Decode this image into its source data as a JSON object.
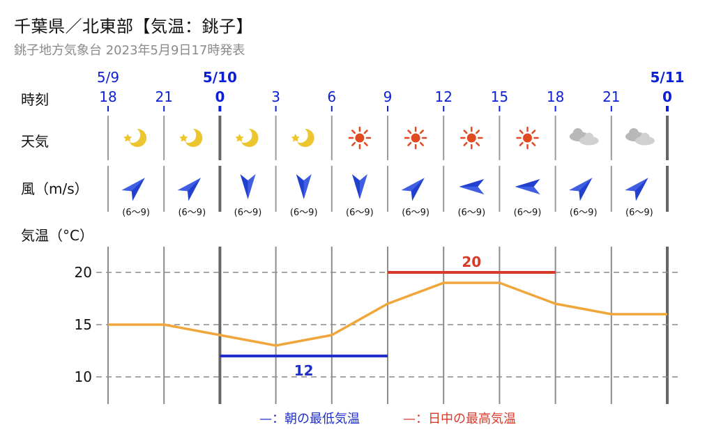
{
  "header": {
    "title": "千葉県／北東部【気温：銚子】",
    "subtitle": "銚子地方気象台 2023年5月9日17時発表"
  },
  "row_labels": {
    "time": "時刻",
    "weather": "天気",
    "wind": "風（m/s）",
    "temperature": "気温（°C）"
  },
  "colors": {
    "date_blue": "#0a1fd6",
    "temperature_line": "#f0a63a",
    "min_temp": "#1f2fc8",
    "max_temp": "#d83a2a",
    "wind_arrow": "#2140d0",
    "sun": "#e04a20",
    "moon": "#ecc52f",
    "cloud": "#c9c9c9"
  },
  "times": [
    {
      "hour": "18",
      "date": "5/9",
      "day_start": false,
      "weather": "moon-icon",
      "wind_dir": "SW",
      "wind": "(6〜9)"
    },
    {
      "hour": "21",
      "date": "",
      "day_start": false,
      "weather": "moon-icon",
      "wind_dir": "SW",
      "wind": "(6〜9)"
    },
    {
      "hour": "0",
      "date": "5/10",
      "day_start": true,
      "weather": "moon-icon",
      "wind_dir": "N",
      "wind": "(6〜9)"
    },
    {
      "hour": "3",
      "date": "",
      "day_start": false,
      "weather": "moon-icon",
      "wind_dir": "N",
      "wind": "(6〜9)"
    },
    {
      "hour": "6",
      "date": "",
      "day_start": false,
      "weather": "sun-icon",
      "wind_dir": "N",
      "wind": "(6〜9)"
    },
    {
      "hour": "9",
      "date": "",
      "day_start": false,
      "weather": "sun-icon",
      "wind_dir": "SW",
      "wind": "(6〜9)"
    },
    {
      "hour": "12",
      "date": "",
      "day_start": false,
      "weather": "sun-icon",
      "wind_dir": "E",
      "wind": "(6〜9)"
    },
    {
      "hour": "15",
      "date": "",
      "day_start": false,
      "weather": "sun-icon",
      "wind_dir": "E",
      "wind": "(6〜9)"
    },
    {
      "hour": "18",
      "date": "",
      "day_start": false,
      "weather": "cloud-icon",
      "wind_dir": "SW",
      "wind": "(6〜9)"
    },
    {
      "hour": "21",
      "date": "",
      "day_start": false,
      "weather": "cloud-icon",
      "wind_dir": "SW",
      "wind": "(6〜9)"
    },
    {
      "hour": "0",
      "date": "5/11",
      "day_start": true,
      "weather": "",
      "wind_dir": "",
      "wind": ""
    }
  ],
  "chart_data": {
    "type": "line",
    "x": [
      "5/9 18",
      "5/9 21",
      "5/10 0",
      "5/10 3",
      "5/10 6",
      "5/10 9",
      "5/10 12",
      "5/10 15",
      "5/10 18",
      "5/10 21",
      "5/11 0"
    ],
    "series": [
      {
        "values": [
          15,
          15,
          14,
          13,
          14,
          17,
          19,
          19,
          17,
          16,
          16
        ]
      }
    ],
    "ylabel": "気温（°C）",
    "yticks": [
      10,
      15,
      20
    ],
    "ylim": [
      7.5,
      22.5
    ],
    "grid": true,
    "min_temp": {
      "value": 12,
      "label": "12",
      "from_index": 2,
      "to_index": 5
    },
    "max_temp": {
      "value": 20,
      "label": "20",
      "from_index": 5,
      "to_index": 8
    },
    "legend": [
      {
        "label": "—：朝の最低気温",
        "color": "#1f2fc8"
      },
      {
        "label": "—：日中の最高気温",
        "color": "#d83a2a"
      }
    ],
    "legend_position": "bottom"
  }
}
